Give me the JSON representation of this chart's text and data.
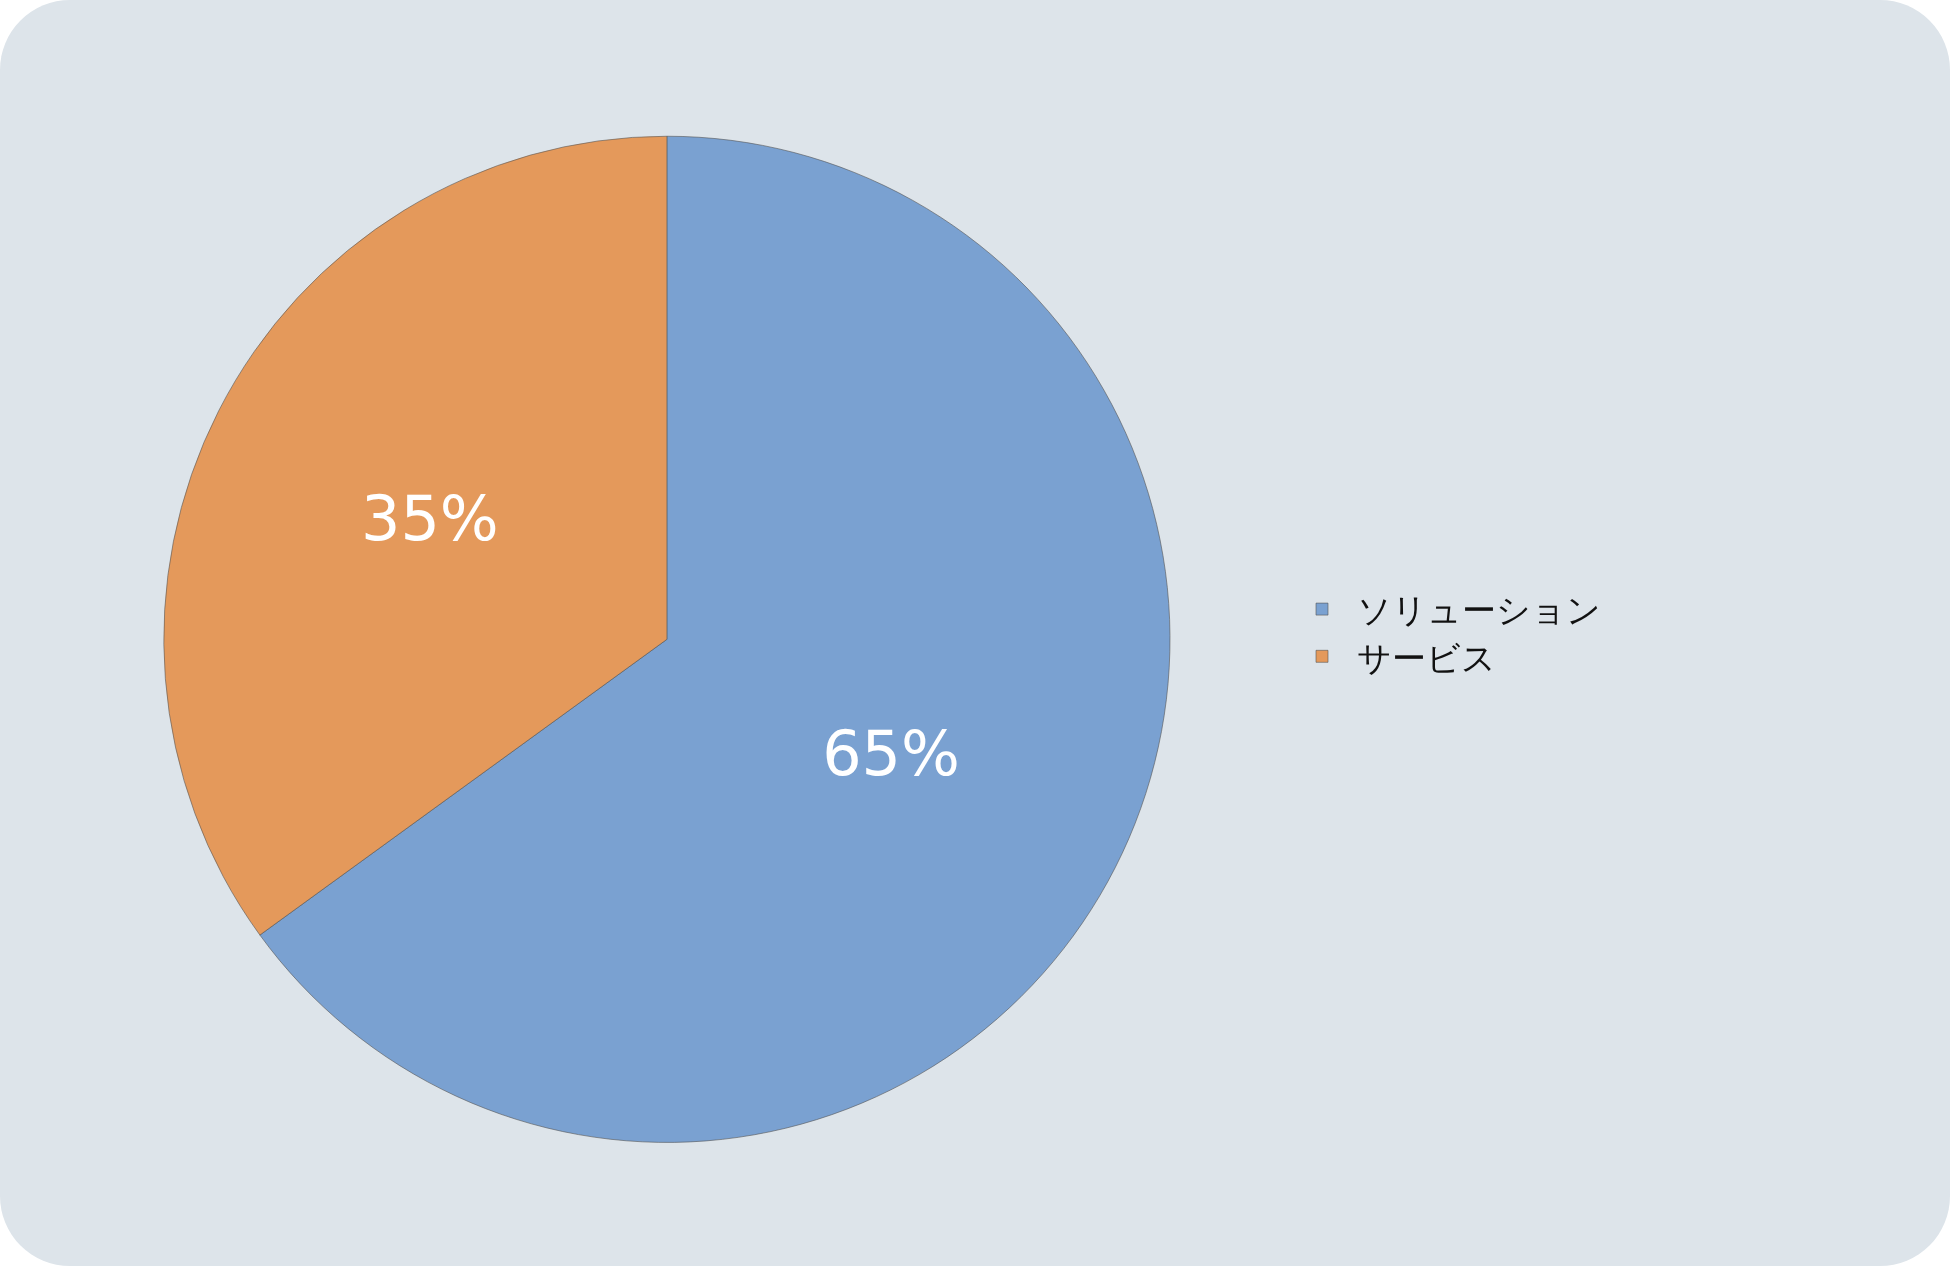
{
  "chart_data": {
    "type": "pie",
    "categories": [
      "ソリューション",
      "サービス"
    ],
    "values": [
      65,
      35
    ],
    "colors": [
      "#7aa1d1",
      "#e4995b"
    ],
    "value_labels": [
      "65%",
      "35%"
    ],
    "legend": "right"
  }
}
